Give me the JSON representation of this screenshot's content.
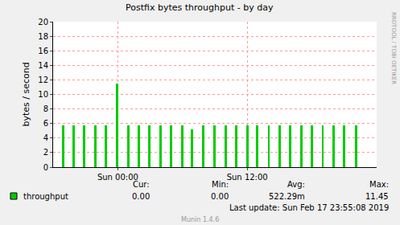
{
  "chart_data": {
    "type": "bar",
    "title": "Postfix bytes throughput - by day",
    "y_label": "bytes / second",
    "x": [
      -5.1,
      -4.1,
      -3.1,
      -2.1,
      -1.1,
      -0.1,
      0.95,
      1.95,
      2.95,
      3.95,
      4.95,
      5.95,
      6.9,
      7.95,
      8.95,
      10,
      10.95,
      12,
      12.95,
      14,
      15,
      16,
      17,
      18,
      19,
      20,
      21,
      22.1
    ],
    "series": [
      {
        "name": "throughput",
        "color": "#00cc00",
        "values": [
          5.7,
          5.7,
          5.7,
          5.7,
          5.7,
          11.45,
          5.7,
          5.7,
          5.7,
          5.7,
          5.7,
          5.7,
          5.2,
          5.7,
          5.7,
          5.7,
          5.7,
          5.7,
          5.7,
          5.7,
          5.7,
          5.7,
          5.7,
          5.7,
          5.7,
          5.7,
          5.7,
          5.7
        ]
      }
    ],
    "xlim": [
      -6,
      24
    ],
    "xticks": [
      {
        "value": 0,
        "label": "Sun 00:00"
      },
      {
        "value": 12,
        "label": "Sun 12:00"
      }
    ],
    "ylim": [
      0,
      20
    ],
    "yticks": [
      0,
      2,
      4,
      6,
      8,
      10,
      12,
      14,
      16,
      18,
      20
    ],
    "grid": true,
    "legend": "bottom",
    "stats": [
      {
        "name": "Cur:",
        "value": 0,
        "label": "0.00"
      },
      {
        "name": "Min:",
        "value": 0,
        "label": "0.00"
      },
      {
        "name": "Avg:",
        "value": 0.52229,
        "label": "522.29m"
      },
      {
        "name": "Max:",
        "value": 11.45,
        "label": "11.45"
      }
    ],
    "annotations": [
      "Last update: Sun Feb 17 23:55:08 2019",
      "Munin 1.4.6",
      "RRDTOOL / TOBI OETIKER"
    ]
  }
}
